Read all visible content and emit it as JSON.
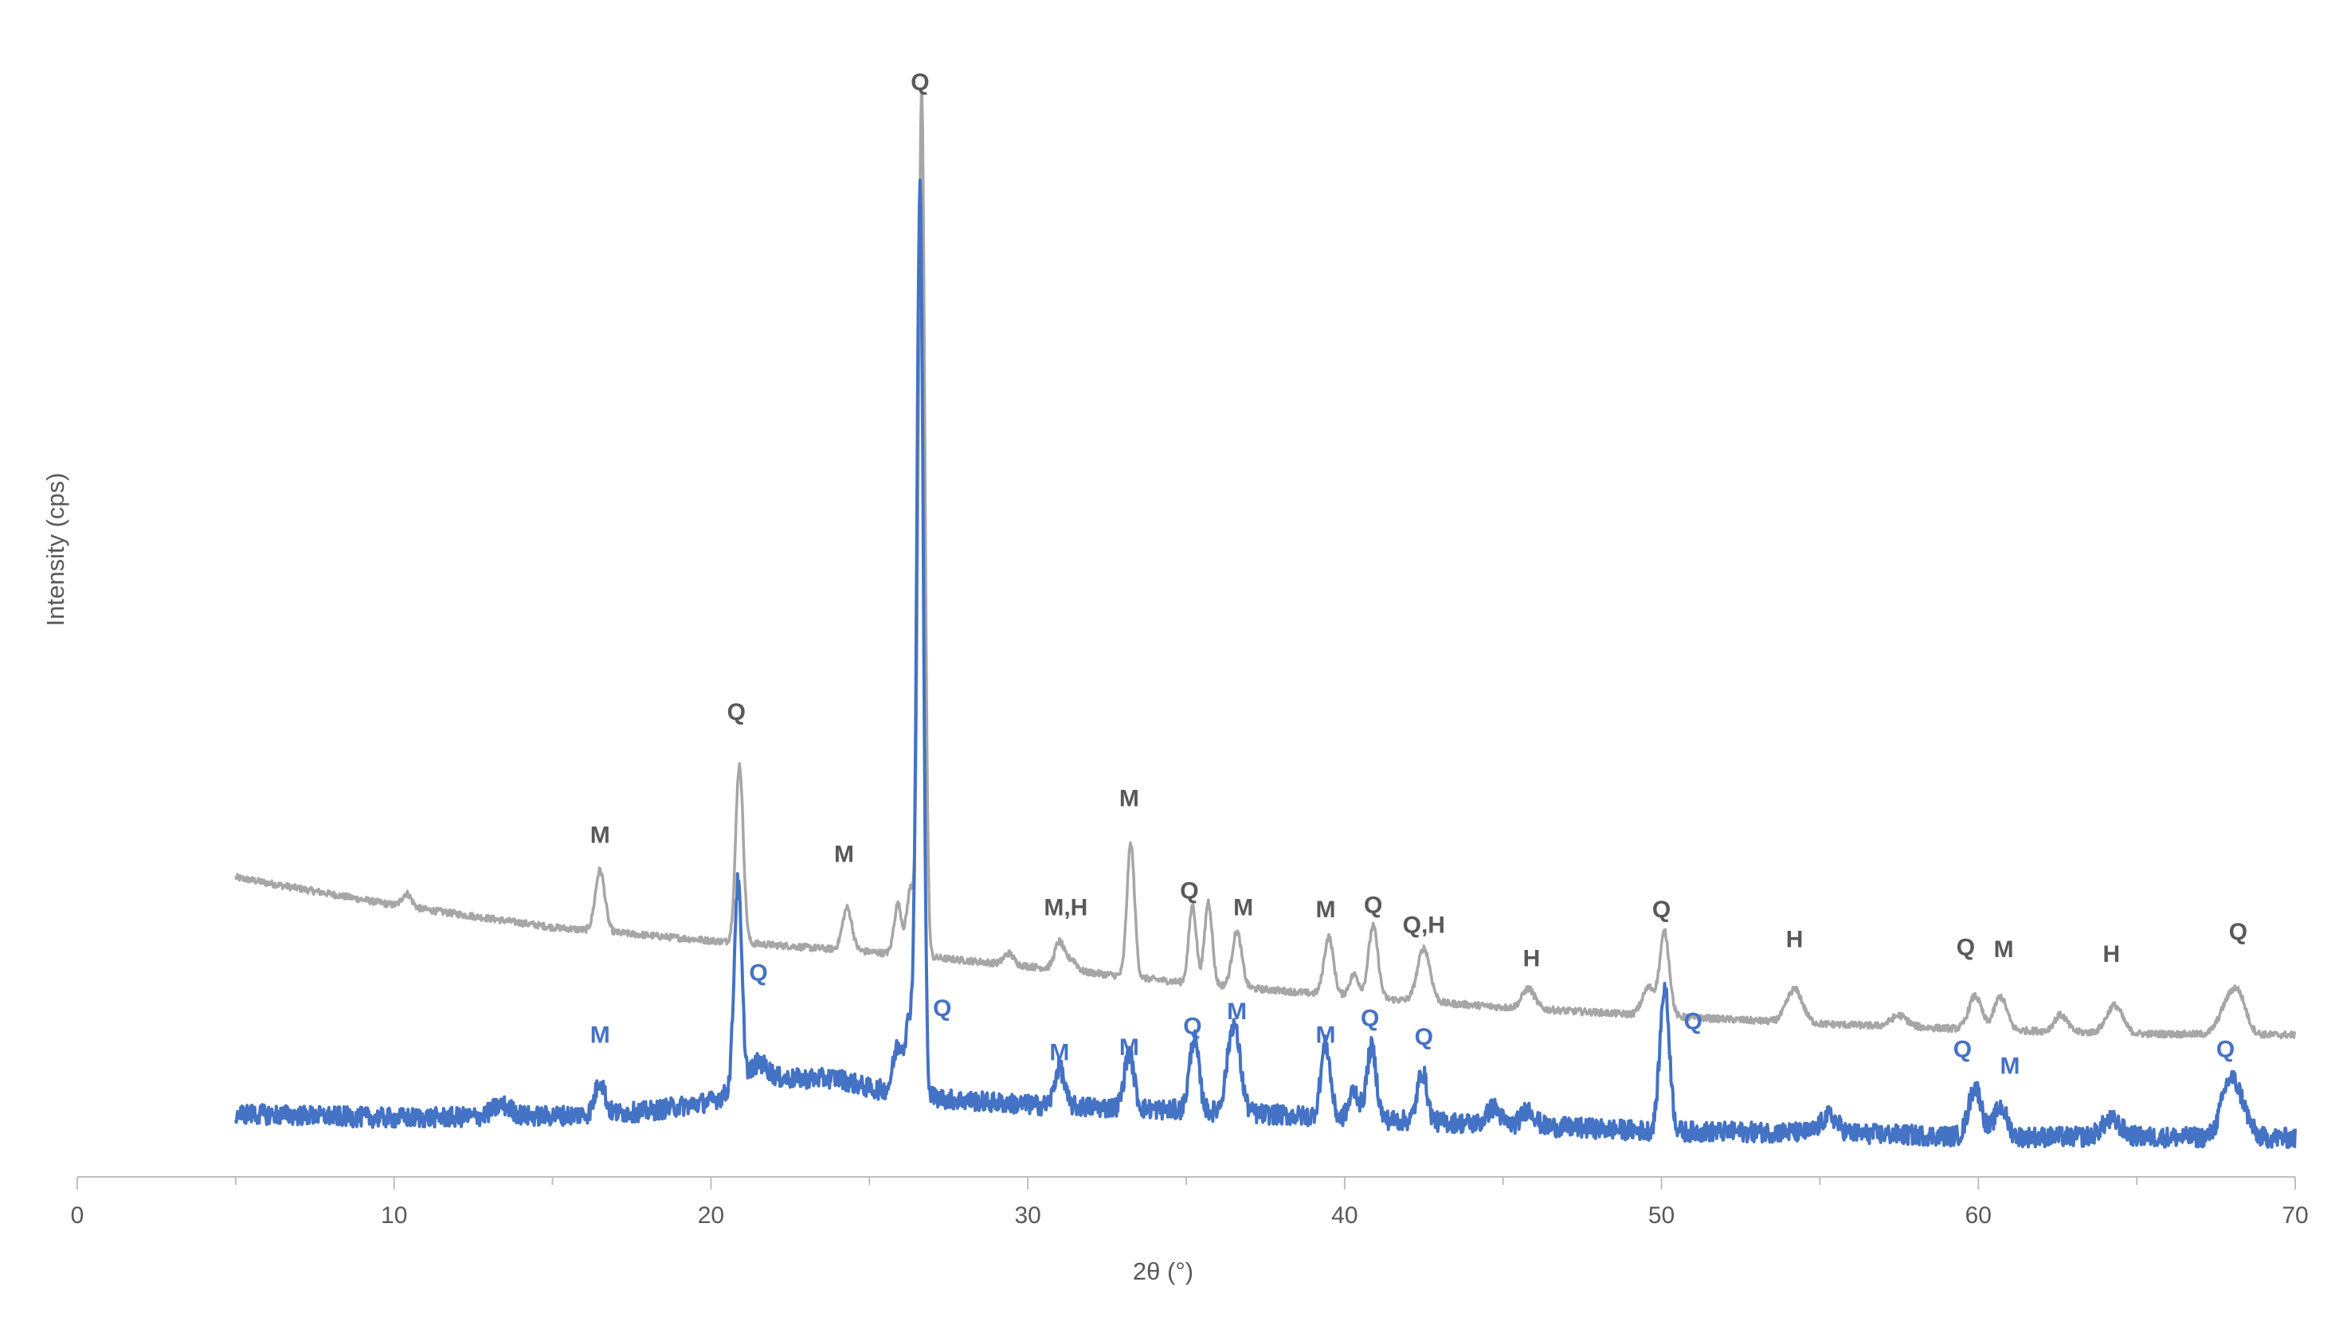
{
  "chart_data": {
    "type": "line",
    "title": "",
    "xlabel": "2θ (°)",
    "ylabel": "Intensity (cps)",
    "xlim": [
      0,
      70
    ],
    "ylim": [
      0,
      100
    ],
    "x_ticks": [
      "0",
      "10",
      "20",
      "30",
      "40",
      "50",
      "60",
      "70"
    ],
    "x_tick_values": [
      0,
      10,
      20,
      30,
      40,
      50,
      60,
      70
    ],
    "y_ticks_shown": false,
    "grid": false,
    "legend": "none",
    "colors": {
      "upper": "#a6a6a6",
      "lower": "#4472c4",
      "upper_label": "#595959",
      "lower_label": "#4472c4",
      "axis": "#bfbfbf"
    },
    "series": [
      {
        "color": "#a6a6a6",
        "baseline": [
          [
            5,
            27.0
          ],
          [
            10,
            24.5
          ],
          [
            15,
            22.5
          ],
          [
            20,
            21.3
          ],
          [
            25,
            20.3
          ],
          [
            30,
            19.0
          ],
          [
            35,
            17.5
          ],
          [
            40,
            16.3
          ],
          [
            45,
            15.3
          ],
          [
            50,
            14.5
          ],
          [
            55,
            13.8
          ],
          [
            60,
            13.3
          ],
          [
            65,
            12.9
          ],
          [
            70,
            12.8
          ]
        ],
        "peaks": [
          [
            10.4,
            1.2,
            0.15
          ],
          [
            16.5,
            5.5,
            0.15
          ],
          [
            20.9,
            16.0,
            0.12
          ],
          [
            24.3,
            3.8,
            0.15
          ],
          [
            25.9,
            4.5,
            0.12
          ],
          [
            26.3,
            6.0,
            0.12
          ],
          [
            26.65,
            78.0,
            0.1
          ],
          [
            29.4,
            1.0,
            0.15
          ],
          [
            31.0,
            2.5,
            0.15
          ],
          [
            31.4,
            1.0,
            0.15
          ],
          [
            33.25,
            12.0,
            0.12
          ],
          [
            35.2,
            7.0,
            0.12
          ],
          [
            35.7,
            7.5,
            0.12
          ],
          [
            36.6,
            5.0,
            0.15
          ],
          [
            39.5,
            5.2,
            0.15
          ],
          [
            40.3,
            2.0,
            0.15
          ],
          [
            40.9,
            6.5,
            0.15
          ],
          [
            42.5,
            4.8,
            0.2
          ],
          [
            45.8,
            1.8,
            0.2
          ],
          [
            49.6,
            2.5,
            0.2
          ],
          [
            50.1,
            7.5,
            0.15
          ],
          [
            54.2,
            3.0,
            0.25
          ],
          [
            57.5,
            1.0,
            0.25
          ],
          [
            59.9,
            3.0,
            0.2
          ],
          [
            60.7,
            3.0,
            0.2
          ],
          [
            62.6,
            1.5,
            0.2
          ],
          [
            64.3,
            2.5,
            0.25
          ],
          [
            67.8,
            2.0,
            0.25
          ],
          [
            68.2,
            3.5,
            0.25
          ]
        ],
        "noise": 0.3
      },
      {
        "color": "#4472c4",
        "baseline": [
          [
            5,
            5.7
          ],
          [
            10,
            5.3
          ],
          [
            15,
            5.5
          ],
          [
            18,
            5.9
          ],
          [
            20,
            6.8
          ],
          [
            21.5,
            8.8
          ],
          [
            24,
            8.9
          ],
          [
            25,
            8.0
          ],
          [
            27.5,
            7.0
          ],
          [
            30,
            6.5
          ],
          [
            35,
            6.0
          ],
          [
            40,
            5.3
          ],
          [
            45,
            4.7
          ],
          [
            50,
            4.1
          ],
          [
            55,
            4.0
          ],
          [
            60,
            3.6
          ],
          [
            65,
            3.6
          ],
          [
            70,
            3.5
          ]
        ],
        "peaks": [
          [
            13.4,
            1.0,
            0.3
          ],
          [
            16.5,
            3.0,
            0.15
          ],
          [
            20.85,
            18.5,
            0.12
          ],
          [
            21.5,
            1.5,
            0.3
          ],
          [
            25.9,
            4.0,
            0.15
          ],
          [
            26.3,
            7.0,
            0.15
          ],
          [
            26.6,
            81.0,
            0.1
          ],
          [
            31.0,
            3.5,
            0.15
          ],
          [
            33.2,
            5.0,
            0.15
          ],
          [
            35.25,
            6.5,
            0.15
          ],
          [
            36.5,
            8.0,
            0.2
          ],
          [
            39.4,
            6.5,
            0.15
          ],
          [
            40.3,
            2.5,
            0.15
          ],
          [
            40.85,
            6.5,
            0.15
          ],
          [
            42.45,
            4.5,
            0.15
          ],
          [
            44.7,
            1.5,
            0.2
          ],
          [
            45.8,
            1.5,
            0.2
          ],
          [
            50.1,
            13.0,
            0.15
          ],
          [
            55.3,
            1.5,
            0.25
          ],
          [
            59.9,
            4.5,
            0.2
          ],
          [
            60.7,
            2.7,
            0.2
          ],
          [
            64.2,
            1.5,
            0.3
          ],
          [
            67.9,
            4.5,
            0.25
          ],
          [
            68.3,
            2.5,
            0.25
          ]
        ],
        "noise": 0.9
      }
    ],
    "annotations": [
      {
        "text": "Q",
        "x": 26.6,
        "y": 98.0,
        "series": 0
      },
      {
        "text": "Q",
        "x": 20.8,
        "y": 41.2,
        "series": 0
      },
      {
        "text": "M",
        "x": 16.5,
        "y": 30.1,
        "series": 0
      },
      {
        "text": "M",
        "x": 24.2,
        "y": 28.4,
        "series": 0
      },
      {
        "text": "M,H",
        "x": 31.2,
        "y": 23.6,
        "series": 0
      },
      {
        "text": "M",
        "x": 33.2,
        "y": 33.4,
        "series": 0
      },
      {
        "text": "Q",
        "x": 35.1,
        "y": 25.1,
        "series": 0
      },
      {
        "text": "M",
        "x": 36.8,
        "y": 23.6,
        "series": 0
      },
      {
        "text": "M",
        "x": 39.4,
        "y": 23.4,
        "series": 0
      },
      {
        "text": "Q",
        "x": 40.9,
        "y": 23.8,
        "series": 0
      },
      {
        "text": "Q,H",
        "x": 42.5,
        "y": 22.0,
        "series": 0
      },
      {
        "text": "H",
        "x": 45.9,
        "y": 19.0,
        "series": 0
      },
      {
        "text": "Q",
        "x": 50.0,
        "y": 23.4,
        "series": 0
      },
      {
        "text": "H",
        "x": 54.2,
        "y": 20.7,
        "series": 0
      },
      {
        "text": "Q",
        "x": 59.6,
        "y": 20.0,
        "series": 0
      },
      {
        "text": "M",
        "x": 60.8,
        "y": 19.8,
        "series": 0
      },
      {
        "text": "H",
        "x": 64.2,
        "y": 19.4,
        "series": 0
      },
      {
        "text": "Q",
        "x": 68.2,
        "y": 21.4,
        "series": 0
      },
      {
        "text": "Q",
        "x": 21.5,
        "y": 17.7,
        "series": 1
      },
      {
        "text": "M",
        "x": 16.5,
        "y": 12.1,
        "series": 1
      },
      {
        "text": "Q",
        "x": 27.3,
        "y": 14.5,
        "series": 1
      },
      {
        "text": "M",
        "x": 31.0,
        "y": 10.5,
        "series": 1
      },
      {
        "text": "M",
        "x": 33.2,
        "y": 11.0,
        "series": 1
      },
      {
        "text": "Q",
        "x": 35.2,
        "y": 12.9,
        "series": 1
      },
      {
        "text": "M",
        "x": 36.6,
        "y": 14.2,
        "series": 1
      },
      {
        "text": "M",
        "x": 39.4,
        "y": 12.1,
        "series": 1
      },
      {
        "text": "Q",
        "x": 40.8,
        "y": 13.6,
        "series": 1
      },
      {
        "text": "Q",
        "x": 42.5,
        "y": 11.9,
        "series": 1
      },
      {
        "text": "Q",
        "x": 51.0,
        "y": 13.3,
        "series": 1
      },
      {
        "text": "Q",
        "x": 59.5,
        "y": 10.8,
        "series": 1
      },
      {
        "text": "M",
        "x": 61.0,
        "y": 9.3,
        "series": 1
      },
      {
        "text": "Q",
        "x": 67.8,
        "y": 10.8,
        "series": 1
      }
    ]
  }
}
